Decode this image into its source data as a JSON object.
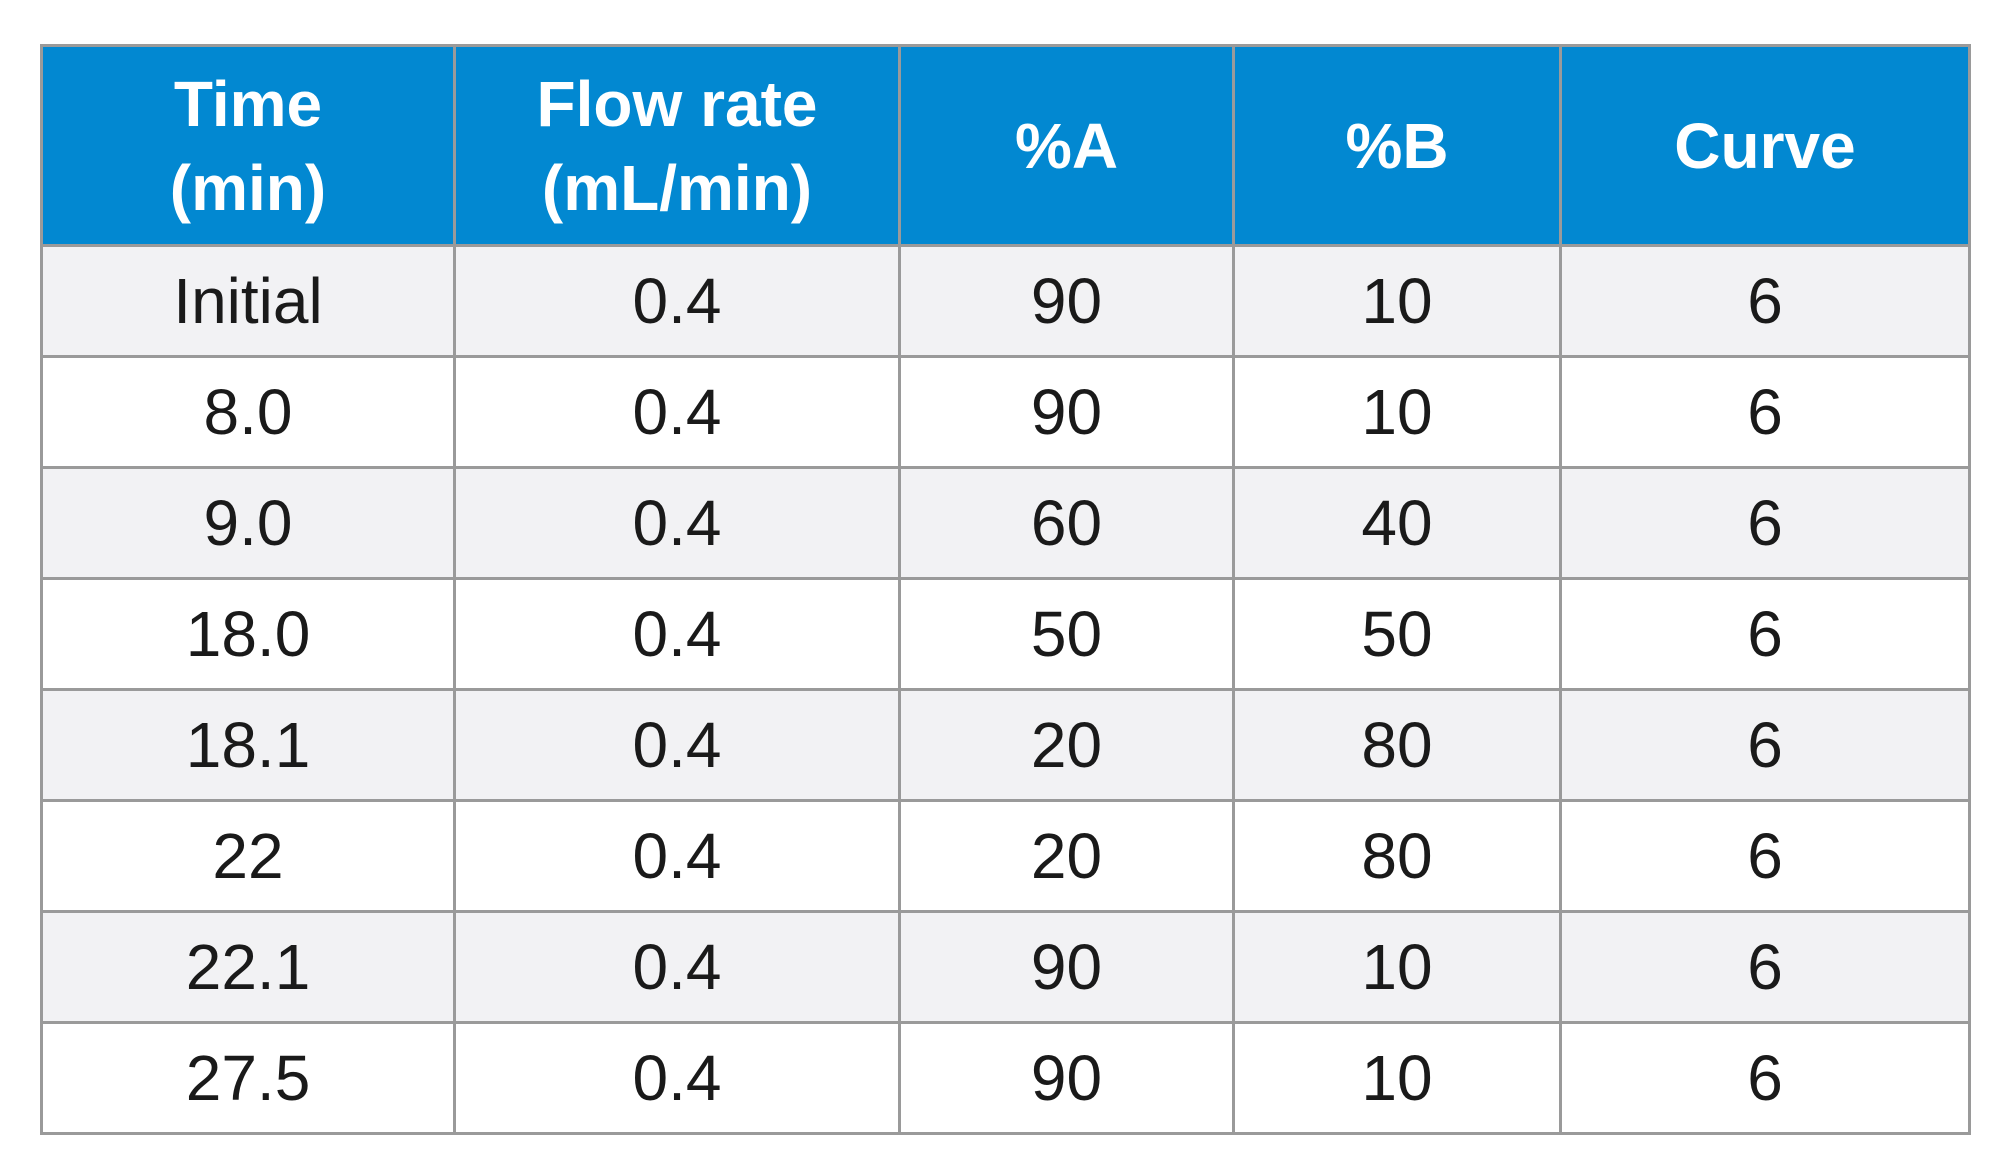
{
  "table": {
    "columns": [
      {
        "line1": "Time",
        "line2": "(min)"
      },
      {
        "line1": "Flow rate",
        "line2": "(mL/min)"
      },
      {
        "line1": "%A",
        "line2": ""
      },
      {
        "line1": "%B",
        "line2": ""
      },
      {
        "line1": "Curve",
        "line2": ""
      }
    ],
    "rows": [
      [
        "Initial",
        "0.4",
        "90",
        "10",
        "6"
      ],
      [
        "8.0",
        "0.4",
        "90",
        "10",
        "6"
      ],
      [
        "9.0",
        "0.4",
        "60",
        "40",
        "6"
      ],
      [
        "18.0",
        "0.4",
        "50",
        "50",
        "6"
      ],
      [
        "18.1",
        "0.4",
        "20",
        "80",
        "6"
      ],
      [
        "22",
        "0.4",
        "20",
        "80",
        "6"
      ],
      [
        "22.1",
        "0.4",
        "90",
        "10",
        "6"
      ],
      [
        "27.5",
        "0.4",
        "90",
        "10",
        "6"
      ]
    ]
  },
  "colors": {
    "header_background": "#0288d1",
    "header_text": "#ffffff",
    "shaded_row": "#f2f2f4",
    "plain_row": "#ffffff",
    "grid_lines": "#9a9a9a",
    "body_text": "#1a1a1a"
  }
}
